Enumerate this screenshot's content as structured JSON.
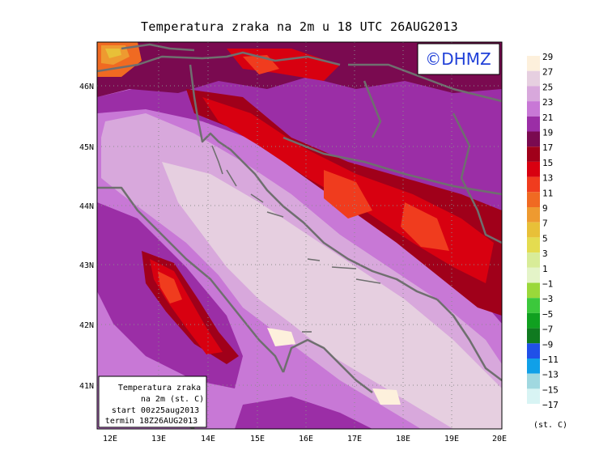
{
  "title": "Temperatura zraka na 2m u 18 UTC 26AUG2013",
  "logo_text": "©DHMZ",
  "lat_labels": [
    "46N",
    "45N",
    "44N",
    "43N",
    "42N",
    "41N"
  ],
  "lon_labels": [
    "12E",
    "13E",
    "14E",
    "15E",
    "16E",
    "17E",
    "18E",
    "19E",
    "20E"
  ],
  "info_box": {
    "line1": "Temperatura zraka",
    "line2": "na 2m (st. C)",
    "line3": "start 00z25aug2013",
    "line4": "termin 18Z26AUG2013"
  },
  "legend": {
    "unit": "(st. C)",
    "items": [
      {
        "label": "29",
        "color": "#fdf0dc"
      },
      {
        "label": "27",
        "color": "#e6cfe0"
      },
      {
        "label": "25",
        "color": "#d8a8dc"
      },
      {
        "label": "23",
        "color": "#c878d6"
      },
      {
        "label": "21",
        "color": "#9b2ea6"
      },
      {
        "label": "19",
        "color": "#7a0a50"
      },
      {
        "label": "17",
        "color": "#a0001a"
      },
      {
        "label": "15",
        "color": "#d80010"
      },
      {
        "label": "13",
        "color": "#f03c1e"
      },
      {
        "label": "11",
        "color": "#f06a22"
      },
      {
        "label": "9",
        "color": "#ee9a30"
      },
      {
        "label": "7",
        "color": "#e8c038"
      },
      {
        "label": "5",
        "color": "#e4dc50"
      },
      {
        "label": "3",
        "color": "#d8ec98"
      },
      {
        "label": "1",
        "color": "#e4f4c8"
      },
      {
        "label": "−1",
        "color": "#9ad83a"
      },
      {
        "label": "−3",
        "color": "#3cc83c"
      },
      {
        "label": "−5",
        "color": "#10a020"
      },
      {
        "label": "−7",
        "color": "#107a20"
      },
      {
        "label": "−9",
        "color": "#2050e8"
      },
      {
        "label": "−11",
        "color": "#10a0e8"
      },
      {
        "label": "−13",
        "color": "#a0d8e0"
      },
      {
        "label": "−15",
        "color": "#d8f4f4"
      },
      {
        "label": "−17",
        "color": "#ffffff"
      }
    ]
  }
}
